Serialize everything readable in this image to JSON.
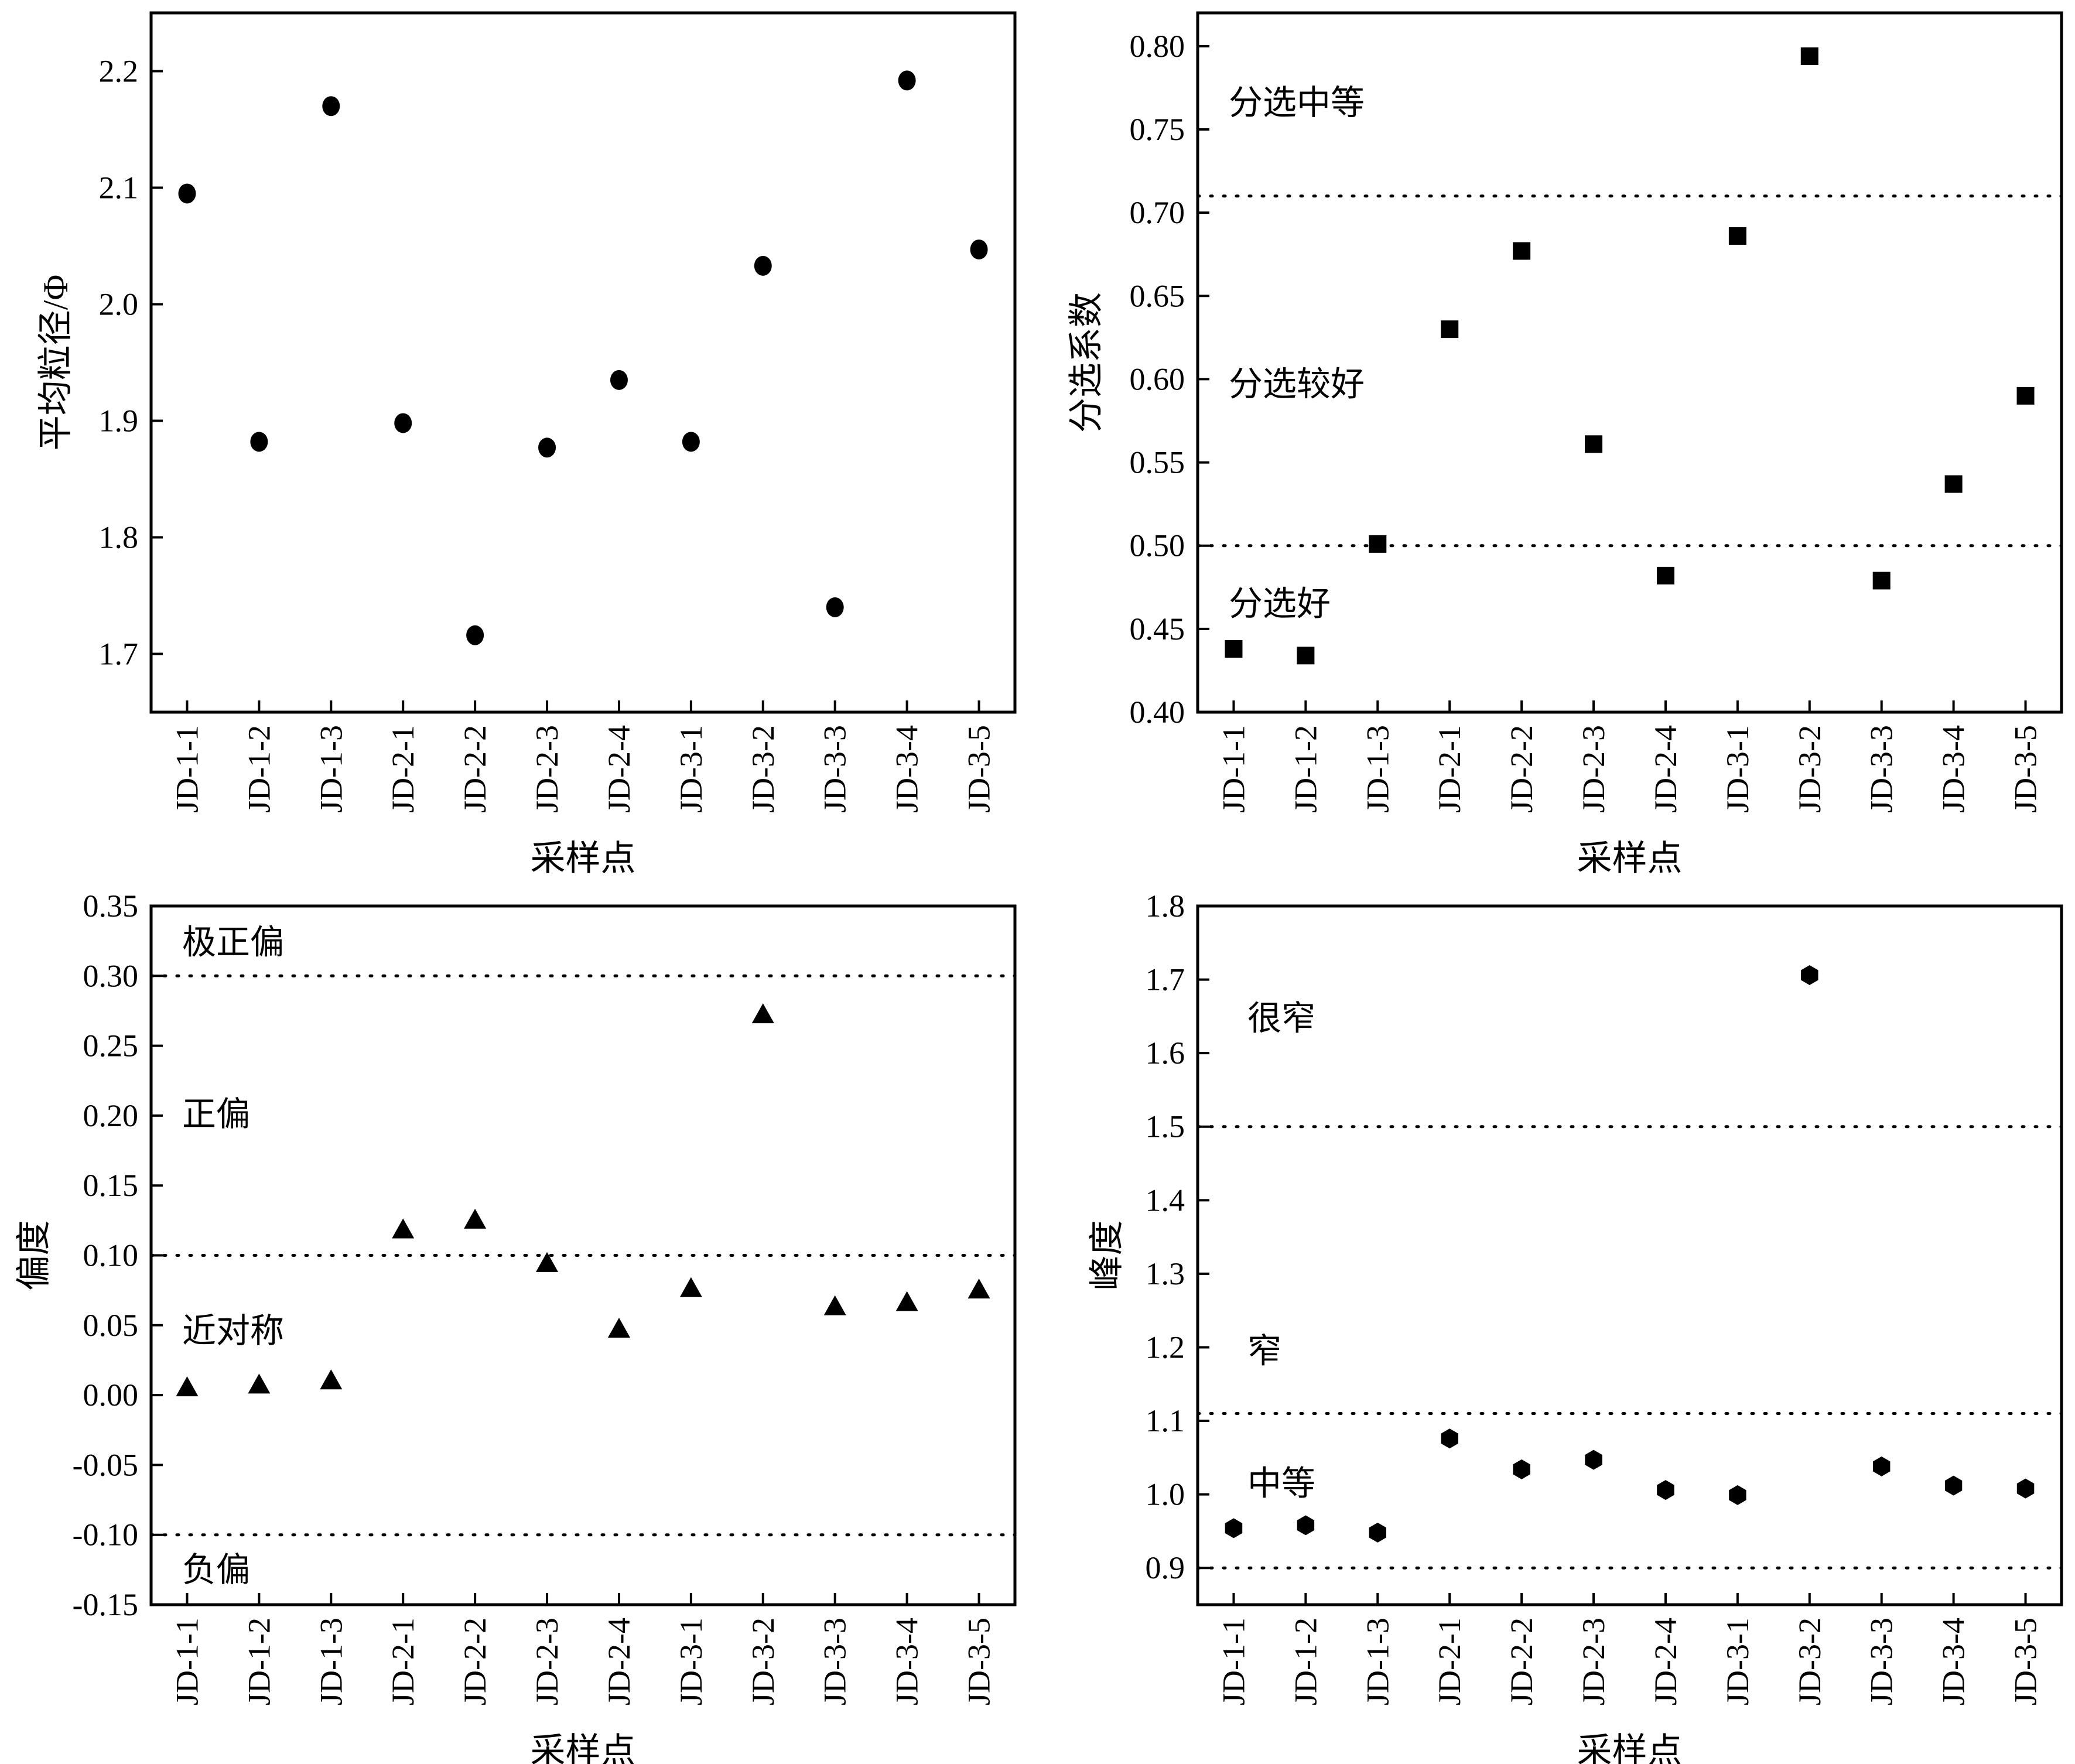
{
  "chart_data": [
    {
      "type": "scatter",
      "marker": "circle",
      "categories": [
        "JD-1-1",
        "JD-1-2",
        "JD-1-3",
        "JD-2-1",
        "JD-2-2",
        "JD-2-3",
        "JD-2-4",
        "JD-3-1",
        "JD-3-2",
        "JD-3-3",
        "JD-3-4",
        "JD-3-5"
      ],
      "values": [
        2.095,
        1.882,
        2.17,
        1.898,
        1.716,
        1.877,
        1.935,
        1.882,
        2.033,
        1.74,
        2.192,
        2.047
      ],
      "xlabel": "采样点",
      "ylabel": "平均粒径/Φ",
      "ylim": [
        1.65,
        2.25
      ],
      "yticks": [
        1.7,
        1.8,
        1.9,
        2.0,
        2.1,
        2.2
      ],
      "ytick_labels": [
        "1.7",
        "1.8",
        "1.9",
        "2.0",
        "2.1",
        "2.2"
      ],
      "hlines": [],
      "zones": []
    },
    {
      "type": "scatter",
      "marker": "square",
      "categories": [
        "JD-1-1",
        "JD-1-2",
        "JD-1-3",
        "JD-2-1",
        "JD-2-2",
        "JD-2-3",
        "JD-2-4",
        "JD-3-1",
        "JD-3-2",
        "JD-3-3",
        "JD-3-4",
        "JD-3-5"
      ],
      "values": [
        0.438,
        0.434,
        0.501,
        0.63,
        0.677,
        0.561,
        0.482,
        0.686,
        0.794,
        0.479,
        0.537,
        0.59
      ],
      "xlabel": "采样点",
      "ylabel": "分选系数",
      "ylim": [
        0.4,
        0.82
      ],
      "yticks": [
        0.4,
        0.45,
        0.5,
        0.55,
        0.6,
        0.65,
        0.7,
        0.75,
        0.8
      ],
      "ytick_labels": [
        "0.40",
        "0.45",
        "0.50",
        "0.55",
        "0.60",
        "0.65",
        "0.70",
        "0.75",
        "0.80"
      ],
      "hlines": [
        0.71,
        0.5
      ],
      "zones": [
        {
          "label": "分选中等",
          "y": 0.766
        },
        {
          "label": "分选较好",
          "y": 0.597
        },
        {
          "label": "分选好",
          "y": 0.465
        }
      ]
    },
    {
      "type": "scatter",
      "marker": "triangle",
      "categories": [
        "JD-1-1",
        "JD-1-2",
        "JD-1-3",
        "JD-2-1",
        "JD-2-2",
        "JD-2-3",
        "JD-2-4",
        "JD-3-1",
        "JD-3-2",
        "JD-3-3",
        "JD-3-4",
        "JD-3-5"
      ],
      "values": [
        0.005,
        0.007,
        0.01,
        0.118,
        0.125,
        0.094,
        0.047,
        0.076,
        0.272,
        0.063,
        0.066,
        0.075
      ],
      "xlabel": "采样点",
      "ylabel": "偏度",
      "ylim": [
        -0.15,
        0.35
      ],
      "yticks": [
        -0.15,
        -0.1,
        -0.05,
        0.0,
        0.05,
        0.1,
        0.15,
        0.2,
        0.25,
        0.3,
        0.35
      ],
      "ytick_labels": [
        "-0.15",
        "-0.10",
        "-0.05",
        "0.00",
        "0.05",
        "0.10",
        "0.15",
        "0.20",
        "0.25",
        "0.30",
        "0.35"
      ],
      "hlines": [
        0.3,
        0.1,
        -0.1
      ],
      "zones": [
        {
          "label": "极正偏",
          "y": 0.324
        },
        {
          "label": "正偏",
          "y": 0.201
        },
        {
          "label": "近对称",
          "y": 0.046
        },
        {
          "label": "负偏",
          "y": -0.125
        }
      ]
    },
    {
      "type": "scatter",
      "marker": "hexagon",
      "categories": [
        "JD-1-1",
        "JD-1-2",
        "JD-1-3",
        "JD-2-1",
        "JD-2-2",
        "JD-2-3",
        "JD-2-4",
        "JD-3-1",
        "JD-3-2",
        "JD-3-3",
        "JD-3-4",
        "JD-3-5"
      ],
      "values": [
        0.954,
        0.958,
        0.948,
        1.076,
        1.034,
        1.047,
        1.006,
        0.999,
        1.706,
        1.038,
        1.012,
        1.008
      ],
      "xlabel": "采样点",
      "ylabel": "峰度",
      "ylim": [
        0.85,
        1.8
      ],
      "yticks": [
        0.9,
        1.0,
        1.1,
        1.2,
        1.3,
        1.4,
        1.5,
        1.6,
        1.7,
        1.8
      ],
      "ytick_labels": [
        "0.9",
        "1.0",
        "1.1",
        "1.2",
        "1.3",
        "1.4",
        "1.5",
        "1.6",
        "1.7",
        "1.8"
      ],
      "hlines": [
        1.5,
        1.11,
        0.9
      ],
      "zones": [
        {
          "label": "很窄",
          "y": 1.647
        },
        {
          "label": "窄",
          "y": 1.195
        },
        {
          "label": "中等",
          "y": 1.015
        }
      ]
    }
  ]
}
